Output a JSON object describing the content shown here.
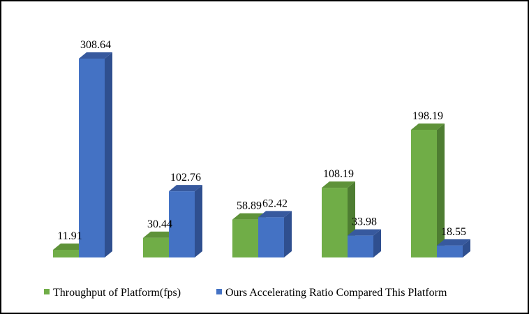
{
  "chart_data": {
    "type": "bar",
    "style": "3d-clustered-column",
    "categories": [
      "",
      "",
      "",
      "",
      ""
    ],
    "series": [
      {
        "name": "Throughput of Platform(fps)",
        "values": [
          11.91,
          30.44,
          58.89,
          108.19,
          198.19
        ],
        "color": "#70ad47"
      },
      {
        "name": "Ours Accelerating Ratio Compared This Platform",
        "values": [
          308.64,
          102.76,
          62.42,
          33.98,
          18.55
        ],
        "color": "#4472c4"
      }
    ],
    "data_labels": true,
    "legend_position": "bottom",
    "grid": false,
    "axes_visible": false,
    "ylim": [
      0,
      308.64
    ]
  }
}
